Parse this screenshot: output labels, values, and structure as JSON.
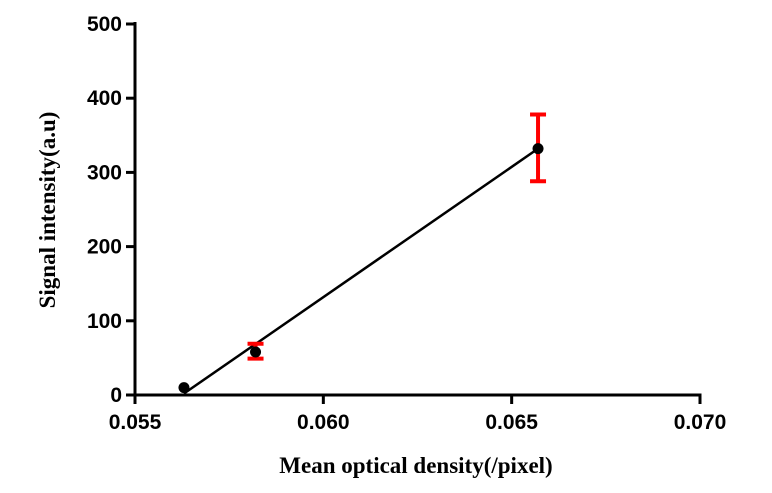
{
  "chart_data": {
    "type": "scatter",
    "title": "",
    "xlabel": "Mean optical density(/pixel)",
    "ylabel": "Signal intensity(a.u)",
    "xlim": [
      0.055,
      0.07
    ],
    "ylim": [
      0,
      500
    ],
    "x_ticks": [
      0.055,
      0.06,
      0.065,
      0.07
    ],
    "x_tick_labels": [
      "0.055",
      "0.060",
      "0.065",
      "0.070"
    ],
    "y_ticks": [
      0,
      100,
      200,
      300,
      400,
      500
    ],
    "y_tick_labels": [
      "0",
      "100",
      "200",
      "300",
      "400",
      "500"
    ],
    "grid": false,
    "series": [
      {
        "points": [
          {
            "x": 0.0563,
            "y": 10,
            "err_low": 0,
            "err_high": 0
          },
          {
            "x": 0.0582,
            "y": 58,
            "err_low": 9,
            "err_high": 11
          },
          {
            "x": 0.0657,
            "y": 332,
            "err_low": 44,
            "err_high": 46
          }
        ],
        "fit_line": {
          "x_start": 0.0563,
          "y_start": 2,
          "x_end": 0.0657,
          "y_end": 332
        }
      }
    ],
    "colors": {
      "marker": "#000000",
      "error_bar": "#ff0000",
      "fit_line": "#000000",
      "axis": "#000000"
    }
  }
}
